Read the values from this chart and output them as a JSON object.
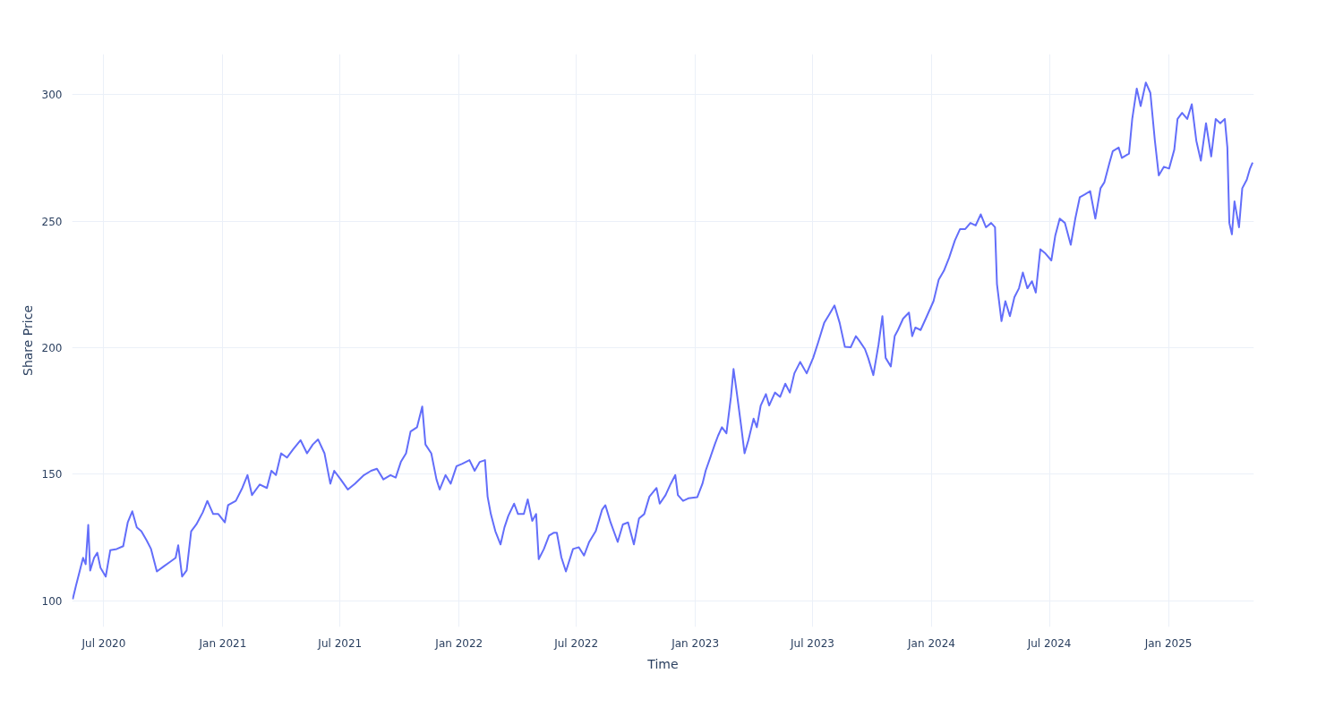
{
  "chart_data": {
    "type": "line",
    "xlabel": "Time",
    "ylabel": "Share Price",
    "xlim": [
      "2020-05-13",
      "2025-05-13"
    ],
    "ylim": [
      89.7,
      316
    ],
    "xticks": [
      {
        "value": "2020-07-01",
        "label": "Jul 2020"
      },
      {
        "value": "2021-01-01",
        "label": "Jan 2021"
      },
      {
        "value": "2021-07-01",
        "label": "Jul 2021"
      },
      {
        "value": "2022-01-01",
        "label": "Jan 2022"
      },
      {
        "value": "2022-07-01",
        "label": "Jul 2022"
      },
      {
        "value": "2023-01-01",
        "label": "Jan 2023"
      },
      {
        "value": "2023-07-01",
        "label": "Jul 2023"
      },
      {
        "value": "2024-01-01",
        "label": "Jan 2024"
      },
      {
        "value": "2024-07-01",
        "label": "Jul 2024"
      },
      {
        "value": "2025-01-01",
        "label": "Jan 2025"
      }
    ],
    "yticks": [
      100,
      150,
      200,
      250,
      300
    ],
    "grid": true,
    "series": [
      {
        "color": "#636efa",
        "x": [
          "2020-05-14",
          "2020-05-19",
          "2020-05-25",
          "2020-05-30",
          "2020-06-03",
          "2020-06-07",
          "2020-06-10",
          "2020-06-16",
          "2020-06-21",
          "2020-06-26",
          "2020-07-04",
          "2020-07-11",
          "2020-07-21",
          "2020-07-31",
          "2020-08-07",
          "2020-08-14",
          "2020-08-21",
          "2020-08-28",
          "2020-09-05",
          "2020-09-12",
          "2020-09-21",
          "2020-10-02",
          "2020-10-12",
          "2020-10-20",
          "2020-10-24",
          "2020-10-30",
          "2020-11-06",
          "2020-11-13",
          "2020-11-21",
          "2020-12-01",
          "2020-12-08",
          "2020-12-17",
          "2020-12-25",
          "2021-01-04",
          "2021-01-09",
          "2021-01-21",
          "2021-01-31",
          "2021-02-08",
          "2021-02-15",
          "2021-02-27",
          "2021-03-10",
          "2021-03-17",
          "2021-03-24",
          "2021-04-01",
          "2021-04-10",
          "2021-04-20",
          "2021-05-01",
          "2021-05-11",
          "2021-05-20",
          "2021-05-28",
          "2021-06-07",
          "2021-06-16",
          "2021-06-22",
          "2021-07-02",
          "2021-07-13",
          "2021-07-24",
          "2021-08-07",
          "2021-08-18",
          "2021-08-27",
          "2021-09-06",
          "2021-09-17",
          "2021-09-25",
          "2021-10-03",
          "2021-10-11",
          "2021-10-18",
          "2021-10-28",
          "2021-11-05",
          "2021-11-10",
          "2021-11-19",
          "2021-11-27",
          "2021-12-02",
          "2021-12-11",
          "2021-12-19",
          "2021-12-28",
          "2022-01-06",
          "2022-01-17",
          "2022-01-25",
          "2022-02-02",
          "2022-02-10",
          "2022-02-14",
          "2022-02-19",
          "2022-02-26",
          "2022-03-06",
          "2022-03-12",
          "2022-03-18",
          "2022-03-27",
          "2022-04-02",
          "2022-04-11",
          "2022-04-17",
          "2022-04-24",
          "2022-04-30",
          "2022-05-04",
          "2022-05-12",
          "2022-05-20",
          "2022-05-27",
          "2022-06-01",
          "2022-06-08",
          "2022-06-15",
          "2022-06-26",
          "2022-07-05",
          "2022-07-13",
          "2022-07-21",
          "2022-07-31",
          "2022-08-10",
          "2022-08-15",
          "2022-08-23",
          "2022-09-03",
          "2022-09-11",
          "2022-09-19",
          "2022-09-28",
          "2022-10-06",
          "2022-10-14",
          "2022-10-22",
          "2022-11-02",
          "2022-11-07",
          "2022-11-16",
          "2022-11-24",
          "2022-12-01",
          "2022-12-05",
          "2022-12-13",
          "2022-12-21",
          "2023-01-04",
          "2023-01-12",
          "2023-01-17",
          "2023-01-24",
          "2023-01-31",
          "2023-02-05",
          "2023-02-11",
          "2023-02-18",
          "2023-02-25",
          "2023-03-01",
          "2023-03-06",
          "2023-03-13",
          "2023-03-18",
          "2023-03-24",
          "2023-04-01",
          "2023-04-06",
          "2023-04-12",
          "2023-04-20",
          "2023-04-25",
          "2023-05-04",
          "2023-05-12",
          "2023-05-20",
          "2023-05-27",
          "2023-06-03",
          "2023-06-12",
          "2023-06-22",
          "2023-07-02",
          "2023-07-10",
          "2023-07-19",
          "2023-07-27",
          "2023-08-04",
          "2023-08-12",
          "2023-08-20",
          "2023-08-29",
          "2023-09-06",
          "2023-09-11",
          "2023-09-20",
          "2023-09-25",
          "2023-10-03",
          "2023-10-11",
          "2023-10-17",
          "2023-10-22",
          "2023-10-30",
          "2023-11-05",
          "2023-11-10",
          "2023-11-18",
          "2023-11-27",
          "2023-12-02",
          "2023-12-07",
          "2023-12-15",
          "2023-12-23",
          "2024-01-04",
          "2024-01-12",
          "2024-01-20",
          "2024-01-28",
          "2024-02-06",
          "2024-02-14",
          "2024-02-22",
          "2024-03-01",
          "2024-03-09",
          "2024-03-17",
          "2024-03-25",
          "2024-04-02",
          "2024-04-08",
          "2024-04-11",
          "2024-04-18",
          "2024-04-24",
          "2024-05-01",
          "2024-05-08",
          "2024-05-15",
          "2024-05-21",
          "2024-05-28",
          "2024-06-04",
          "2024-06-10",
          "2024-06-17",
          "2024-06-25",
          "2024-07-04",
          "2024-07-10",
          "2024-07-17",
          "2024-07-25",
          "2024-08-03",
          "2024-08-10",
          "2024-08-17",
          "2024-08-25",
          "2024-09-02",
          "2024-09-10",
          "2024-09-18",
          "2024-09-24",
          "2024-10-02",
          "2024-10-07",
          "2024-10-16",
          "2024-10-21",
          "2024-11-01",
          "2024-11-06",
          "2024-11-13",
          "2024-11-19",
          "2024-11-27",
          "2024-12-04",
          "2024-12-11",
          "2024-12-17",
          "2024-12-25",
          "2025-01-02",
          "2025-01-10",
          "2025-01-15",
          "2025-01-22",
          "2025-01-30",
          "2025-02-06",
          "2025-02-13",
          "2025-02-20",
          "2025-02-28",
          "2025-03-08",
          "2025-03-15",
          "2025-03-22",
          "2025-03-29",
          "2025-04-02",
          "2025-04-05",
          "2025-04-09",
          "2025-04-13",
          "2025-04-20",
          "2025-04-25",
          "2025-05-02",
          "2025-05-07",
          "2025-05-11"
        ],
        "values": [
          100.7,
          106,
          112,
          117,
          114.5,
          130,
          112,
          117,
          119,
          113,
          109.6,
          120,
          120.5,
          121.6,
          131,
          135.4,
          129,
          127.5,
          124,
          120.5,
          111.6,
          113.7,
          115.5,
          117,
          122,
          109.6,
          112,
          127.5,
          130.2,
          135,
          139.5,
          134.3,
          134.3,
          131,
          137.8,
          139.5,
          144.6,
          149.7,
          141.8,
          146,
          144.6,
          151.4,
          149.7,
          158.3,
          156.6,
          160,
          163.5,
          158.3,
          161.8,
          163.8,
          158.3,
          146.3,
          151.4,
          148,
          144,
          146.3,
          149.7,
          151.4,
          152.2,
          148,
          149.7,
          148.7,
          154.9,
          158.3,
          166.9,
          168.6,
          176.8,
          161.8,
          158.3,
          148,
          144,
          149.7,
          146.3,
          153.2,
          154.2,
          155.6,
          151.4,
          154.9,
          155.6,
          141.2,
          134.3,
          127.5,
          122.3,
          129,
          133.6,
          138.4,
          134.3,
          134.3,
          140.1,
          131.6,
          134.3,
          116.5,
          120.5,
          125.8,
          126.9,
          126.9,
          117.2,
          111.6,
          120.5,
          121.2,
          117.9,
          123.3,
          127.5,
          136.1,
          137.8,
          131,
          123.3,
          130.2,
          131,
          122.3,
          132.6,
          134.3,
          141.2,
          144.6,
          138.4,
          141.8,
          146.3,
          149.7,
          141.8,
          139.5,
          140.5,
          141,
          146.3,
          151.5,
          156.6,
          161.8,
          165.2,
          168.6,
          166.2,
          180.6,
          191.6,
          182.3,
          168.6,
          158.3,
          163.5,
          172,
          168.6,
          177.2,
          181.7,
          177.2,
          182.3,
          180.6,
          185.8,
          182.3,
          189.9,
          194.4,
          189.9,
          196,
          202.3,
          209.8,
          213.2,
          216.7,
          209.8,
          200.4,
          200.2,
          204.6,
          202.9,
          199.5,
          196,
          189.2,
          201.2,
          212.5,
          196,
          192.6,
          204.6,
          207,
          211.5,
          213.9,
          204.6,
          208,
          207,
          211.5,
          218.4,
          226.9,
          230.4,
          235.5,
          242.4,
          246.9,
          246.9,
          249.3,
          248.3,
          252.7,
          247.6,
          249.3,
          247.6,
          225.2,
          210.5,
          218.4,
          212.5,
          220,
          223.5,
          229.7,
          223.5,
          226.3,
          221.8,
          238.9,
          237.2,
          234.5,
          244.2,
          251,
          249.3,
          240.7,
          251,
          259.5,
          260.6,
          261.9,
          251,
          263,
          265.4,
          273.2,
          277.7,
          279.1,
          275,
          276.7,
          290.4,
          302.4,
          295.5,
          304.8,
          300.7,
          281.8,
          268.1,
          271.5,
          270.8,
          278.3,
          290.4,
          292.8,
          290.4,
          296.2,
          281.8,
          273.9,
          288.7,
          275.6,
          290.4,
          288.7,
          290.4,
          279.1,
          249.3,
          244.8,
          257.8,
          247.6,
          263,
          266.4,
          270.8,
          273.2
        ]
      }
    ]
  }
}
